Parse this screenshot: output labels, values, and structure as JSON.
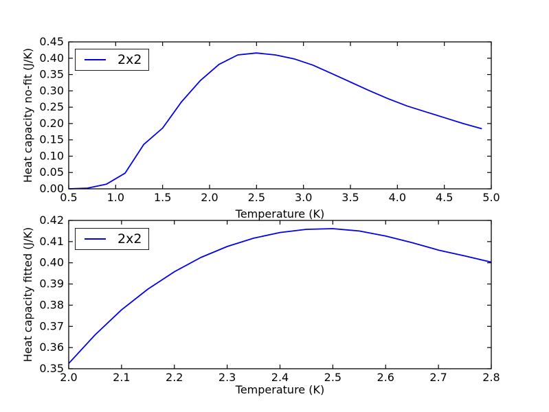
{
  "figure": {
    "background": "#ffffff",
    "axis_color": "#000000",
    "line_color": "#0000ee"
  },
  "chart_data": [
    {
      "type": "line",
      "title": "",
      "xlabel": "Temperature (K)",
      "ylabel": "Heat capacity no-fit (J/K)",
      "xlim": [
        0.5,
        5.0
      ],
      "ylim": [
        0.0,
        0.45
      ],
      "xticks": [
        "0.5",
        "1.0",
        "1.5",
        "2.0",
        "2.5",
        "3.0",
        "3.5",
        "4.0",
        "4.5",
        "5.0"
      ],
      "yticks": [
        "0.00",
        "0.05",
        "0.10",
        "0.15",
        "0.20",
        "0.25",
        "0.30",
        "0.35",
        "0.40",
        "0.45"
      ],
      "grid": false,
      "legend": {
        "label": "2x2",
        "position": "upper-left"
      },
      "series": [
        {
          "name": "2x2",
          "color": "#0000ee",
          "x": [
            0.5,
            0.7,
            0.9,
            1.1,
            1.3,
            1.5,
            1.7,
            1.9,
            2.1,
            2.3,
            2.5,
            2.7,
            2.9,
            3.1,
            3.3,
            3.5,
            3.7,
            3.9,
            4.1,
            4.3,
            4.5,
            4.7,
            4.9
          ],
          "y": [
            0.0,
            0.002,
            0.014,
            0.048,
            0.136,
            0.186,
            0.266,
            0.331,
            0.381,
            0.41,
            0.416,
            0.41,
            0.398,
            0.379,
            0.353,
            0.327,
            0.301,
            0.276,
            0.254,
            0.236,
            0.218,
            0.2,
            0.184
          ]
        }
      ]
    },
    {
      "type": "line",
      "title": "",
      "xlabel": "Temperature (K)",
      "ylabel": "Heat capacity fitted (J/K)",
      "xlim": [
        2.0,
        2.8
      ],
      "ylim": [
        0.35,
        0.42
      ],
      "xticks": [
        "2.0",
        "2.1",
        "2.2",
        "2.3",
        "2.4",
        "2.5",
        "2.6",
        "2.7",
        "2.8"
      ],
      "yticks": [
        "0.35",
        "0.36",
        "0.37",
        "0.38",
        "0.39",
        "0.40",
        "0.41",
        "0.42"
      ],
      "grid": false,
      "legend": {
        "label": "2x2",
        "position": "upper-left"
      },
      "series": [
        {
          "name": "2x2",
          "color": "#0000ee",
          "x": [
            2.0,
            2.05,
            2.1,
            2.15,
            2.2,
            2.25,
            2.3,
            2.35,
            2.4,
            2.45,
            2.5,
            2.55,
            2.6,
            2.65,
            2.7,
            2.75,
            2.8
          ],
          "y": [
            0.3525,
            0.366,
            0.3778,
            0.3876,
            0.3958,
            0.4025,
            0.4077,
            0.4116,
            0.4143,
            0.4158,
            0.4161,
            0.415,
            0.4126,
            0.4095,
            0.406,
            0.4032,
            0.4003
          ]
        }
      ]
    }
  ]
}
